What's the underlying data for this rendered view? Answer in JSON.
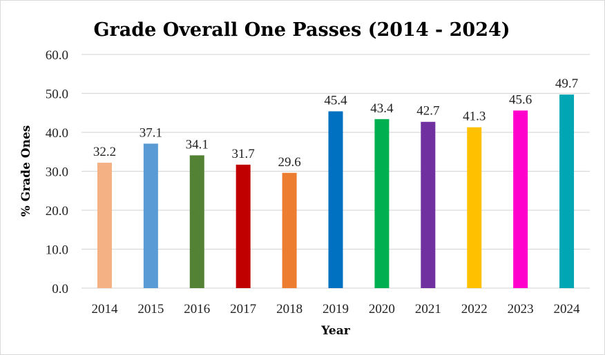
{
  "chart_data": {
    "type": "bar",
    "title": "Grade Overall One Passes (2014 - 2024)",
    "xlabel": "Year",
    "ylabel": "% Grade Ones",
    "categories": [
      "2014",
      "2015",
      "2016",
      "2017",
      "2018",
      "2019",
      "2020",
      "2021",
      "2022",
      "2023",
      "2024"
    ],
    "values": [
      32.2,
      37.1,
      34.1,
      31.7,
      29.6,
      45.4,
      43.4,
      42.7,
      41.3,
      45.6,
      49.7
    ],
    "data_labels": [
      "32.2",
      "37.1",
      "34.1",
      "31.7",
      "29.6",
      "45.4",
      "43.4",
      "42.7",
      "41.3",
      "45.6",
      "49.7"
    ],
    "colors": [
      "#f4b183",
      "#5b9bd5",
      "#548235",
      "#c00000",
      "#ed7d31",
      "#0070c0",
      "#00b050",
      "#7030a0",
      "#ffc000",
      "#ff00cc",
      "#00a6b4"
    ],
    "ylim": [
      0,
      60
    ],
    "yticks": [
      0,
      10,
      20,
      30,
      40,
      50,
      60
    ],
    "ytick_labels": [
      "0.0",
      "10.0",
      "20.0",
      "30.0",
      "40.0",
      "50.0",
      "60.0"
    ],
    "grid": true,
    "legend": "none"
  }
}
